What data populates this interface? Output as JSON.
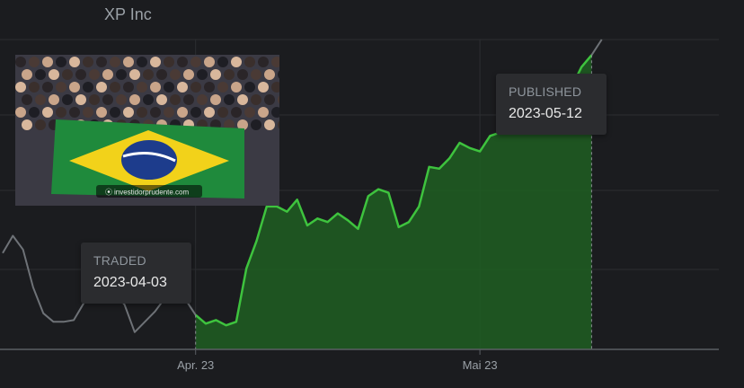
{
  "chart_data": {
    "type": "line",
    "title": "XP Inc",
    "x_tick_labels": [
      "Apr. 23",
      "Mai 23"
    ],
    "highlight_range": {
      "start": "2023-04-03",
      "end": "2023-05-12"
    },
    "series": [
      {
        "points": [
          [
            "2023-03-15",
            17.6
          ],
          [
            "2023-03-16",
            18.6
          ],
          [
            "2023-03-17",
            17.8
          ],
          [
            "2023-03-18",
            15.6
          ],
          [
            "2023-03-19",
            14.1
          ],
          [
            "2023-03-20",
            13.6
          ],
          [
            "2023-03-21",
            13.6
          ],
          [
            "2023-03-22",
            13.7
          ],
          [
            "2023-03-23",
            14.7
          ],
          [
            "2023-03-24",
            15.6
          ],
          [
            "2023-03-25",
            14.9
          ],
          [
            "2023-03-26",
            15.3
          ],
          [
            "2023-03-27",
            14.6
          ],
          [
            "2023-03-28",
            13.0
          ],
          [
            "2023-03-29",
            13.6
          ],
          [
            "2023-03-30",
            14.2
          ],
          [
            "2023-03-31",
            15.0
          ],
          [
            "2023-04-01",
            15.4
          ],
          [
            "2023-04-02",
            14.9
          ],
          [
            "2023-04-03",
            14.0
          ],
          [
            "2023-04-04",
            13.5
          ],
          [
            "2023-04-05",
            13.7
          ],
          [
            "2023-04-06",
            13.4
          ],
          [
            "2023-04-07",
            13.6
          ],
          [
            "2023-04-08",
            16.7
          ],
          [
            "2023-04-09",
            18.3
          ],
          [
            "2023-04-10",
            20.3
          ],
          [
            "2023-04-11",
            20.3
          ],
          [
            "2023-04-12",
            20.0
          ],
          [
            "2023-04-13",
            20.7
          ],
          [
            "2023-04-14",
            19.2
          ],
          [
            "2023-04-15",
            19.6
          ],
          [
            "2023-04-16",
            19.4
          ],
          [
            "2023-04-17",
            19.9
          ],
          [
            "2023-04-18",
            19.5
          ],
          [
            "2023-04-19",
            19.0
          ],
          [
            "2023-04-20",
            20.9
          ],
          [
            "2023-04-21",
            21.3
          ],
          [
            "2023-04-22",
            21.1
          ],
          [
            "2023-04-23",
            19.1
          ],
          [
            "2023-04-24",
            19.4
          ],
          [
            "2023-04-25",
            20.3
          ],
          [
            "2023-04-26",
            22.6
          ],
          [
            "2023-04-27",
            22.5
          ],
          [
            "2023-04-28",
            23.1
          ],
          [
            "2023-04-29",
            24.0
          ],
          [
            "2023-04-30",
            23.7
          ],
          [
            "2023-05-01",
            23.5
          ],
          [
            "2023-05-02",
            24.4
          ],
          [
            "2023-05-03",
            24.6
          ],
          [
            "2023-05-04",
            25.0
          ],
          [
            "2023-05-05",
            25.3
          ],
          [
            "2023-05-06",
            25.6
          ],
          [
            "2023-05-07",
            26.1
          ],
          [
            "2023-05-08",
            26.5
          ],
          [
            "2023-05-09",
            26.5
          ],
          [
            "2023-05-10",
            27.2
          ],
          [
            "2023-05-11",
            28.4
          ],
          [
            "2023-05-12",
            29.1
          ],
          [
            "2023-05-13",
            30.0
          ]
        ]
      }
    ],
    "y_range": [
      12.0,
      30.0
    ],
    "grid": true,
    "legend": "none",
    "colors": {
      "highlight_line": "#3ec33e",
      "highlight_fill": "#1f5e22",
      "base_line": "#6e7277",
      "grid": "#2c2e31",
      "baseline_axis": "#5a5e63"
    }
  },
  "tooltips": {
    "traded": {
      "label": "TRADED",
      "date": "2023-04-03"
    },
    "published": {
      "label": "PUBLISHED",
      "date": "2023-05-12"
    }
  },
  "photo": {
    "caption": "investidorprudente.com",
    "subject": "brazil-flag-crowd"
  }
}
